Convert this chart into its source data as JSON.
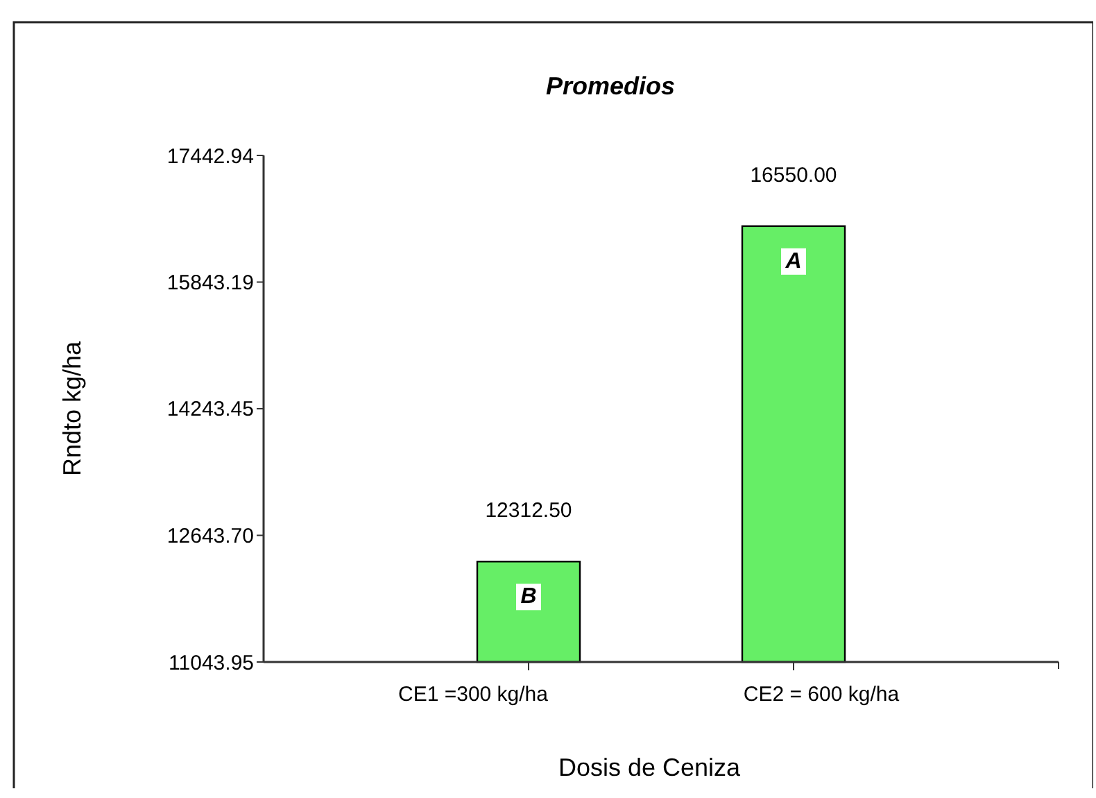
{
  "chart_data": {
    "type": "bar",
    "title": "Promedios",
    "xlabel": "Dosis de Ceniza",
    "ylabel": "Rndto kg/ha",
    "categories": [
      "CE1 =300 kg/ha",
      "CE2 = 600 kg/ha"
    ],
    "values": [
      12312.5,
      16550
    ],
    "color": "#66ee66",
    "value_labels": [
      "12312.50",
      "16550.00"
    ],
    "ylim": [
      11043.95,
      17442.94
    ],
    "yticks": [
      11043.95,
      {
        "value": 12643.7,
        "label": "12643.70"
      },
      14243.45,
      15843.19,
      17442.94
    ],
    "annotations": [
      "B",
      "A"
    ],
    "grid": false
  }
}
